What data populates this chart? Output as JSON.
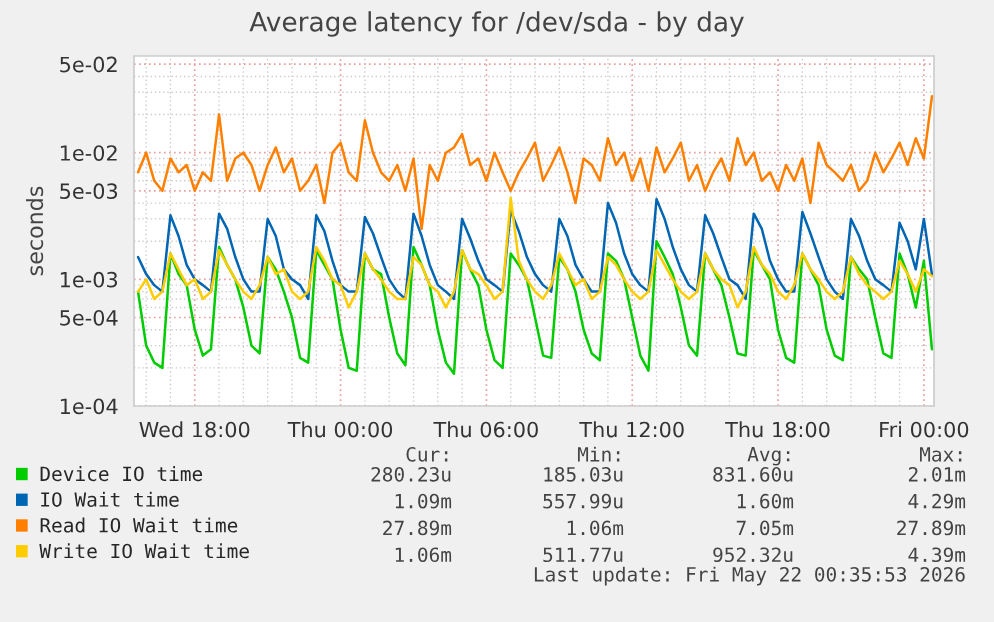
{
  "chart_data": {
    "type": "line",
    "title": "Average latency for /dev/sda - by day",
    "ylabel": "seconds",
    "log": "y",
    "grid": true,
    "legend": "bottom",
    "xlim": [
      "2026-05-20T15:30",
      "2026-05-22T00:25"
    ],
    "xticks": [
      {
        "value": "2026-05-20T18:00",
        "label": "Wed 18:00"
      },
      {
        "value": "2026-05-21T00:00",
        "label": "Thu 00:00"
      },
      {
        "value": "2026-05-21T06:00",
        "label": "Thu 06:00"
      },
      {
        "value": "2026-05-21T12:00",
        "label": "Thu 12:00"
      },
      {
        "value": "2026-05-21T18:00",
        "label": "Thu 18:00"
      },
      {
        "value": "2026-05-22T00:00",
        "label": "Fri 00:00"
      }
    ],
    "ylim": [
      0.0001,
      0.058
    ],
    "yticks": [
      {
        "value": 0.0001,
        "label": "1e-04"
      },
      {
        "value": 0.0005,
        "label": "5e-04"
      },
      {
        "value": 0.001,
        "label": "1e-03"
      },
      {
        "value": 0.005,
        "label": "5e-03"
      },
      {
        "value": 0.01,
        "label": "1e-02"
      },
      {
        "value": 0.05,
        "label": "5e-02"
      }
    ],
    "x": [
      "2026-05-20T15:40",
      "2026-05-20T16:00",
      "2026-05-20T16:20",
      "2026-05-20T16:40",
      "2026-05-20T17:00",
      "2026-05-20T17:20",
      "2026-05-20T17:40",
      "2026-05-20T18:00",
      "2026-05-20T18:20",
      "2026-05-20T18:40",
      "2026-05-20T19:00",
      "2026-05-20T19:20",
      "2026-05-20T19:40",
      "2026-05-20T20:00",
      "2026-05-20T20:20",
      "2026-05-20T20:40",
      "2026-05-20T21:00",
      "2026-05-20T21:20",
      "2026-05-20T21:40",
      "2026-05-20T22:00",
      "2026-05-20T22:20",
      "2026-05-20T22:40",
      "2026-05-20T23:00",
      "2026-05-20T23:20",
      "2026-05-20T23:40",
      "2026-05-21T00:00",
      "2026-05-21T00:20",
      "2026-05-21T00:40",
      "2026-05-21T01:00",
      "2026-05-21T01:20",
      "2026-05-21T01:40",
      "2026-05-21T02:00",
      "2026-05-21T02:20",
      "2026-05-21T02:40",
      "2026-05-21T03:00",
      "2026-05-21T03:20",
      "2026-05-21T03:40",
      "2026-05-21T04:00",
      "2026-05-21T04:20",
      "2026-05-21T04:40",
      "2026-05-21T05:00",
      "2026-05-21T05:20",
      "2026-05-21T05:40",
      "2026-05-21T06:00",
      "2026-05-21T06:20",
      "2026-05-21T06:40",
      "2026-05-21T07:00",
      "2026-05-21T07:20",
      "2026-05-21T07:40",
      "2026-05-21T08:00",
      "2026-05-21T08:20",
      "2026-05-21T08:40",
      "2026-05-21T09:00",
      "2026-05-21T09:20",
      "2026-05-21T09:40",
      "2026-05-21T10:00",
      "2026-05-21T10:20",
      "2026-05-21T10:40",
      "2026-05-21T11:00",
      "2026-05-21T11:20",
      "2026-05-21T11:40",
      "2026-05-21T12:00",
      "2026-05-21T12:20",
      "2026-05-21T12:40",
      "2026-05-21T13:00",
      "2026-05-21T13:20",
      "2026-05-21T13:40",
      "2026-05-21T14:00",
      "2026-05-21T14:20",
      "2026-05-21T14:40",
      "2026-05-21T15:00",
      "2026-05-21T15:20",
      "2026-05-21T15:40",
      "2026-05-21T16:00",
      "2026-05-21T16:20",
      "2026-05-21T16:40",
      "2026-05-21T17:00",
      "2026-05-21T17:20",
      "2026-05-21T17:40",
      "2026-05-21T18:00",
      "2026-05-21T18:20",
      "2026-05-21T18:40",
      "2026-05-21T19:00",
      "2026-05-21T19:20",
      "2026-05-21T19:40",
      "2026-05-21T20:00",
      "2026-05-21T20:20",
      "2026-05-21T20:40",
      "2026-05-21T21:00",
      "2026-05-21T21:20",
      "2026-05-21T21:40",
      "2026-05-21T22:00",
      "2026-05-21T22:20",
      "2026-05-21T22:40",
      "2026-05-21T23:00",
      "2026-05-21T23:20",
      "2026-05-21T23:40",
      "2026-05-22T00:00",
      "2026-05-22T00:20"
    ],
    "series": [
      {
        "name": "Device IO time",
        "color": "#00cc00",
        "values": [
          0.0008,
          0.0003,
          0.00022,
          0.0002,
          0.0016,
          0.0011,
          0.0009,
          0.0004,
          0.00025,
          0.00028,
          0.0018,
          0.0013,
          0.001,
          0.0006,
          0.0003,
          0.00026,
          0.0015,
          0.0012,
          0.0008,
          0.0005,
          0.00024,
          0.00022,
          0.0017,
          0.0013,
          0.001,
          0.0004,
          0.0002,
          0.00019,
          0.0016,
          0.0012,
          0.0011,
          0.0005,
          0.00026,
          0.00021,
          0.0018,
          0.0013,
          0.0009,
          0.0004,
          0.00022,
          0.00018,
          0.0017,
          0.0012,
          0.0009,
          0.0004,
          0.00023,
          0.0002,
          0.0016,
          0.0013,
          0.001,
          0.0005,
          0.00025,
          0.00024,
          0.0015,
          0.0012,
          0.0008,
          0.0004,
          0.00026,
          0.00023,
          0.0016,
          0.0014,
          0.001,
          0.0005,
          0.00025,
          0.00019,
          0.002,
          0.0015,
          0.0011,
          0.0006,
          0.0003,
          0.00025,
          0.0016,
          0.0012,
          0.0009,
          0.0005,
          0.00026,
          0.00025,
          0.0017,
          0.0013,
          0.001,
          0.0004,
          0.00024,
          0.00022,
          0.0016,
          0.0012,
          0.0009,
          0.0004,
          0.00025,
          0.00023,
          0.0015,
          0.0012,
          0.001,
          0.0005,
          0.00026,
          0.00024,
          0.0016,
          0.0011,
          0.0006,
          0.0014,
          0.00028
        ]
      },
      {
        "name": "IO Wait time",
        "color": "#0066b3",
        "values": [
          0.0015,
          0.0011,
          0.0009,
          0.0008,
          0.0032,
          0.0022,
          0.0013,
          0.001,
          0.0009,
          0.0008,
          0.0033,
          0.0025,
          0.0015,
          0.001,
          0.0008,
          0.0008,
          0.003,
          0.0022,
          0.0012,
          0.001,
          0.0009,
          0.0007,
          0.0032,
          0.0024,
          0.0014,
          0.0009,
          0.0008,
          0.0008,
          0.0031,
          0.0023,
          0.0015,
          0.001,
          0.0008,
          0.0007,
          0.0033,
          0.0022,
          0.0013,
          0.0009,
          0.0008,
          0.0007,
          0.003,
          0.0021,
          0.0014,
          0.001,
          0.0009,
          0.0008,
          0.0035,
          0.0024,
          0.0015,
          0.0011,
          0.0009,
          0.0008,
          0.003,
          0.0022,
          0.0013,
          0.001,
          0.0008,
          0.0008,
          0.004,
          0.0028,
          0.0016,
          0.0011,
          0.0009,
          0.0008,
          0.0043,
          0.003,
          0.0018,
          0.0012,
          0.0009,
          0.0008,
          0.0032,
          0.0023,
          0.0015,
          0.001,
          0.0009,
          0.0007,
          0.0033,
          0.0025,
          0.0014,
          0.001,
          0.0008,
          0.0008,
          0.0034,
          0.0023,
          0.0015,
          0.001,
          0.0008,
          0.0007,
          0.003,
          0.0022,
          0.0014,
          0.001,
          0.0009,
          0.0008,
          0.0028,
          0.002,
          0.0012,
          0.003,
          0.00109
        ]
      },
      {
        "name": "Read IO Wait time",
        "color": "#ff8000",
        "values": [
          0.007,
          0.01,
          0.006,
          0.005,
          0.009,
          0.007,
          0.008,
          0.005,
          0.007,
          0.006,
          0.02,
          0.006,
          0.009,
          0.01,
          0.008,
          0.005,
          0.008,
          0.011,
          0.007,
          0.009,
          0.005,
          0.006,
          0.008,
          0.004,
          0.01,
          0.012,
          0.007,
          0.006,
          0.018,
          0.01,
          0.007,
          0.006,
          0.008,
          0.005,
          0.009,
          0.0025,
          0.008,
          0.006,
          0.01,
          0.011,
          0.014,
          0.008,
          0.009,
          0.006,
          0.01,
          0.007,
          0.005,
          0.007,
          0.009,
          0.012,
          0.006,
          0.008,
          0.011,
          0.007,
          0.004,
          0.009,
          0.008,
          0.006,
          0.013,
          0.008,
          0.01,
          0.006,
          0.009,
          0.005,
          0.011,
          0.007,
          0.009,
          0.012,
          0.006,
          0.008,
          0.005,
          0.007,
          0.009,
          0.006,
          0.013,
          0.008,
          0.01,
          0.006,
          0.007,
          0.005,
          0.008,
          0.006,
          0.009,
          0.004,
          0.012,
          0.008,
          0.007,
          0.006,
          0.008,
          0.005,
          0.006,
          0.01,
          0.007,
          0.009,
          0.012,
          0.008,
          0.013,
          0.009,
          0.0279
        ]
      },
      {
        "name": "Write IO Wait time",
        "color": "#ffcc00",
        "values": [
          0.0008,
          0.001,
          0.0007,
          0.0008,
          0.0016,
          0.0012,
          0.0009,
          0.001,
          0.0007,
          0.0008,
          0.0017,
          0.0013,
          0.001,
          0.0008,
          0.0007,
          0.0009,
          0.0015,
          0.0011,
          0.0012,
          0.0008,
          0.0007,
          0.0008,
          0.0018,
          0.0014,
          0.001,
          0.0009,
          0.0006,
          0.0008,
          0.0016,
          0.0012,
          0.001,
          0.0008,
          0.0007,
          0.0007,
          0.0015,
          0.0013,
          0.0009,
          0.0008,
          0.0006,
          0.0008,
          0.0017,
          0.0012,
          0.0011,
          0.0009,
          0.0007,
          0.0008,
          0.0044,
          0.0014,
          0.001,
          0.0008,
          0.0007,
          0.0009,
          0.0016,
          0.0012,
          0.0009,
          0.001,
          0.0007,
          0.0008,
          0.0015,
          0.0013,
          0.001,
          0.0008,
          0.0007,
          0.0008,
          0.0017,
          0.0013,
          0.001,
          0.0008,
          0.0007,
          0.0008,
          0.0016,
          0.0012,
          0.001,
          0.0009,
          0.0006,
          0.0008,
          0.0018,
          0.0013,
          0.0011,
          0.0008,
          0.0007,
          0.0009,
          0.0016,
          0.0012,
          0.001,
          0.0008,
          0.0007,
          0.0008,
          0.0015,
          0.0011,
          0.0009,
          0.0008,
          0.0007,
          0.0008,
          0.0014,
          0.0011,
          0.0008,
          0.0012,
          0.00106
        ]
      }
    ],
    "annotations": [
      "Cur:",
      "Min:",
      "Avg:",
      "Max:",
      "280.23u",
      "185.03u",
      "831.60u",
      "2.01m",
      "1.09m",
      "557.99u",
      "1.60m",
      "4.29m",
      "27.89m",
      "1.06m",
      "7.05m",
      "27.89m",
      "1.06m",
      "511.77u",
      "952.32u",
      "4.39m",
      "Last update: Fri May 22 00:35:53 2026"
    ]
  }
}
